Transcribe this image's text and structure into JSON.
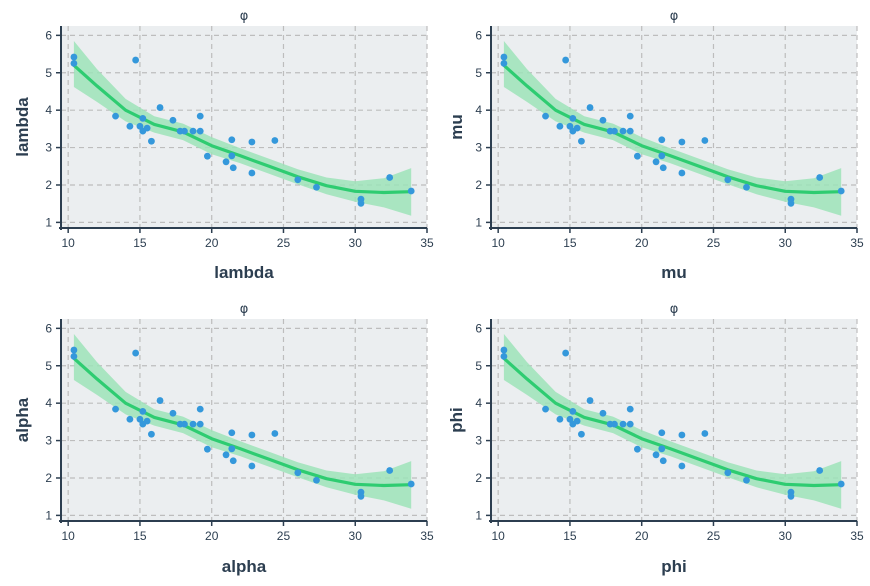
{
  "colors": {
    "panel_bg": "#ebeef0",
    "grid": "#bdbdbd",
    "axis": "#2c3e50",
    "point": "#3498db",
    "smooth_line": "#2ecc71",
    "band": "#9ee3b8"
  },
  "chart_data": [
    {
      "type": "scatter",
      "title": "φ",
      "xlabel": "lambda",
      "ylabel": "lambda",
      "xlim": [
        9.5,
        35
      ],
      "ylim": [
        0.85,
        6.25
      ],
      "xticks": [
        10,
        15,
        20,
        25,
        30,
        35
      ],
      "yticks": [
        1,
        2,
        3,
        4,
        5,
        6
      ],
      "grid": true,
      "points": [
        [
          10.4,
          5.42
        ],
        [
          10.4,
          5.25
        ],
        [
          13.3,
          3.84
        ],
        [
          14.3,
          3.57
        ],
        [
          14.7,
          5.34
        ],
        [
          15.0,
          3.57
        ],
        [
          15.2,
          3.78
        ],
        [
          15.2,
          3.44
        ],
        [
          15.5,
          3.52
        ],
        [
          15.8,
          3.17
        ],
        [
          16.4,
          4.07
        ],
        [
          17.3,
          3.73
        ],
        [
          17.8,
          3.44
        ],
        [
          18.1,
          3.44
        ],
        [
          18.7,
          3.44
        ],
        [
          19.2,
          3.84
        ],
        [
          19.2,
          3.44
        ],
        [
          19.7,
          2.77
        ],
        [
          21.0,
          2.62
        ],
        [
          21.4,
          2.78
        ],
        [
          21.4,
          3.21
        ],
        [
          21.5,
          2.46
        ],
        [
          22.8,
          2.32
        ],
        [
          22.8,
          3.15
        ],
        [
          24.4,
          3.19
        ],
        [
          26.0,
          2.14
        ],
        [
          27.3,
          1.94
        ],
        [
          30.4,
          1.62
        ],
        [
          30.4,
          1.51
        ],
        [
          32.4,
          2.2
        ],
        [
          33.9,
          1.84
        ]
      ],
      "smooth": {
        "x": [
          10.4,
          12.0,
          14.0,
          16.0,
          18.0,
          20.0,
          22.0,
          24.0,
          26.0,
          28.0,
          30.0,
          32.0,
          33.9
        ],
        "y": [
          5.2,
          4.65,
          4.0,
          3.62,
          3.42,
          3.05,
          2.78,
          2.5,
          2.22,
          1.98,
          1.83,
          1.8,
          1.82
        ]
      },
      "band": {
        "x": [
          10.4,
          12.0,
          14.0,
          16.0,
          18.0,
          20.0,
          22.0,
          24.0,
          26.0,
          28.0,
          30.0,
          32.0,
          33.9
        ],
        "lower": [
          4.62,
          4.22,
          3.7,
          3.4,
          3.2,
          2.82,
          2.58,
          2.3,
          2.02,
          1.75,
          1.55,
          1.4,
          1.18
        ],
        "upper": [
          5.85,
          5.1,
          4.3,
          3.84,
          3.64,
          3.28,
          2.98,
          2.7,
          2.42,
          2.2,
          2.1,
          2.18,
          2.45
        ]
      }
    },
    {
      "type": "scatter",
      "title": "φ",
      "xlabel": "mu",
      "ylabel": "mu",
      "xlim": [
        9.5,
        35
      ],
      "ylim": [
        0.85,
        6.25
      ],
      "xticks": [
        10,
        15,
        20,
        25,
        30,
        35
      ],
      "yticks": [
        1,
        2,
        3,
        4,
        5,
        6
      ],
      "grid": true,
      "points": [
        [
          10.4,
          5.42
        ],
        [
          10.4,
          5.25
        ],
        [
          13.3,
          3.84
        ],
        [
          14.3,
          3.57
        ],
        [
          14.7,
          5.34
        ],
        [
          15.0,
          3.57
        ],
        [
          15.2,
          3.78
        ],
        [
          15.2,
          3.44
        ],
        [
          15.5,
          3.52
        ],
        [
          15.8,
          3.17
        ],
        [
          16.4,
          4.07
        ],
        [
          17.3,
          3.73
        ],
        [
          17.8,
          3.44
        ],
        [
          18.1,
          3.44
        ],
        [
          18.7,
          3.44
        ],
        [
          19.2,
          3.84
        ],
        [
          19.2,
          3.44
        ],
        [
          19.7,
          2.77
        ],
        [
          21.0,
          2.62
        ],
        [
          21.4,
          2.78
        ],
        [
          21.4,
          3.21
        ],
        [
          21.5,
          2.46
        ],
        [
          22.8,
          2.32
        ],
        [
          22.8,
          3.15
        ],
        [
          24.4,
          3.19
        ],
        [
          26.0,
          2.14
        ],
        [
          27.3,
          1.94
        ],
        [
          30.4,
          1.62
        ],
        [
          30.4,
          1.51
        ],
        [
          32.4,
          2.2
        ],
        [
          33.9,
          1.84
        ]
      ],
      "smooth": {
        "x": [
          10.4,
          12.0,
          14.0,
          16.0,
          18.0,
          20.0,
          22.0,
          24.0,
          26.0,
          28.0,
          30.0,
          32.0,
          33.9
        ],
        "y": [
          5.2,
          4.65,
          4.0,
          3.62,
          3.42,
          3.05,
          2.78,
          2.5,
          2.22,
          1.98,
          1.83,
          1.8,
          1.82
        ]
      },
      "band": {
        "x": [
          10.4,
          12.0,
          14.0,
          16.0,
          18.0,
          20.0,
          22.0,
          24.0,
          26.0,
          28.0,
          30.0,
          32.0,
          33.9
        ],
        "lower": [
          4.62,
          4.22,
          3.7,
          3.4,
          3.2,
          2.82,
          2.58,
          2.3,
          2.02,
          1.75,
          1.55,
          1.4,
          1.18
        ],
        "upper": [
          5.85,
          5.1,
          4.3,
          3.84,
          3.64,
          3.28,
          2.98,
          2.7,
          2.42,
          2.2,
          2.1,
          2.18,
          2.45
        ]
      }
    },
    {
      "type": "scatter",
      "title": "φ",
      "xlabel": "alpha",
      "ylabel": "alpha",
      "xlim": [
        9.5,
        35
      ],
      "ylim": [
        0.85,
        6.25
      ],
      "xticks": [
        10,
        15,
        20,
        25,
        30,
        35
      ],
      "yticks": [
        1,
        2,
        3,
        4,
        5,
        6
      ],
      "grid": true,
      "points": [
        [
          10.4,
          5.42
        ],
        [
          10.4,
          5.25
        ],
        [
          13.3,
          3.84
        ],
        [
          14.3,
          3.57
        ],
        [
          14.7,
          5.34
        ],
        [
          15.0,
          3.57
        ],
        [
          15.2,
          3.78
        ],
        [
          15.2,
          3.44
        ],
        [
          15.5,
          3.52
        ],
        [
          15.8,
          3.17
        ],
        [
          16.4,
          4.07
        ],
        [
          17.3,
          3.73
        ],
        [
          17.8,
          3.44
        ],
        [
          18.1,
          3.44
        ],
        [
          18.7,
          3.44
        ],
        [
          19.2,
          3.84
        ],
        [
          19.2,
          3.44
        ],
        [
          19.7,
          2.77
        ],
        [
          21.0,
          2.62
        ],
        [
          21.4,
          2.78
        ],
        [
          21.4,
          3.21
        ],
        [
          21.5,
          2.46
        ],
        [
          22.8,
          2.32
        ],
        [
          22.8,
          3.15
        ],
        [
          24.4,
          3.19
        ],
        [
          26.0,
          2.14
        ],
        [
          27.3,
          1.94
        ],
        [
          30.4,
          1.62
        ],
        [
          30.4,
          1.51
        ],
        [
          32.4,
          2.2
        ],
        [
          33.9,
          1.84
        ]
      ],
      "smooth": {
        "x": [
          10.4,
          12.0,
          14.0,
          16.0,
          18.0,
          20.0,
          22.0,
          24.0,
          26.0,
          28.0,
          30.0,
          32.0,
          33.9
        ],
        "y": [
          5.2,
          4.65,
          4.0,
          3.62,
          3.42,
          3.05,
          2.78,
          2.5,
          2.22,
          1.98,
          1.83,
          1.8,
          1.82
        ]
      },
      "band": {
        "x": [
          10.4,
          12.0,
          14.0,
          16.0,
          18.0,
          20.0,
          22.0,
          24.0,
          26.0,
          28.0,
          30.0,
          32.0,
          33.9
        ],
        "lower": [
          4.62,
          4.22,
          3.7,
          3.4,
          3.2,
          2.82,
          2.58,
          2.3,
          2.02,
          1.75,
          1.55,
          1.4,
          1.18
        ],
        "upper": [
          5.85,
          5.1,
          4.3,
          3.84,
          3.64,
          3.28,
          2.98,
          2.7,
          2.42,
          2.2,
          2.1,
          2.18,
          2.45
        ]
      }
    },
    {
      "type": "scatter",
      "title": "φ",
      "xlabel": "phi",
      "ylabel": "phi",
      "xlim": [
        9.5,
        35
      ],
      "ylim": [
        0.85,
        6.25
      ],
      "xticks": [
        10,
        15,
        20,
        25,
        30,
        35
      ],
      "yticks": [
        1,
        2,
        3,
        4,
        5,
        6
      ],
      "grid": true,
      "points": [
        [
          10.4,
          5.42
        ],
        [
          10.4,
          5.25
        ],
        [
          13.3,
          3.84
        ],
        [
          14.3,
          3.57
        ],
        [
          14.7,
          5.34
        ],
        [
          15.0,
          3.57
        ],
        [
          15.2,
          3.78
        ],
        [
          15.2,
          3.44
        ],
        [
          15.5,
          3.52
        ],
        [
          15.8,
          3.17
        ],
        [
          16.4,
          4.07
        ],
        [
          17.3,
          3.73
        ],
        [
          17.8,
          3.44
        ],
        [
          18.1,
          3.44
        ],
        [
          18.7,
          3.44
        ],
        [
          19.2,
          3.84
        ],
        [
          19.2,
          3.44
        ],
        [
          19.7,
          2.77
        ],
        [
          21.0,
          2.62
        ],
        [
          21.4,
          2.78
        ],
        [
          21.4,
          3.21
        ],
        [
          21.5,
          2.46
        ],
        [
          22.8,
          2.32
        ],
        [
          22.8,
          3.15
        ],
        [
          24.4,
          3.19
        ],
        [
          26.0,
          2.14
        ],
        [
          27.3,
          1.94
        ],
        [
          30.4,
          1.62
        ],
        [
          30.4,
          1.51
        ],
        [
          32.4,
          2.2
        ],
        [
          33.9,
          1.84
        ]
      ],
      "smooth": {
        "x": [
          10.4,
          12.0,
          14.0,
          16.0,
          18.0,
          20.0,
          22.0,
          24.0,
          26.0,
          28.0,
          30.0,
          32.0,
          33.9
        ],
        "y": [
          5.2,
          4.65,
          4.0,
          3.62,
          3.42,
          3.05,
          2.78,
          2.5,
          2.22,
          1.98,
          1.83,
          1.8,
          1.82
        ]
      },
      "band": {
        "x": [
          10.4,
          12.0,
          14.0,
          16.0,
          18.0,
          20.0,
          22.0,
          24.0,
          26.0,
          28.0,
          30.0,
          32.0,
          33.9
        ],
        "lower": [
          4.62,
          4.22,
          3.7,
          3.4,
          3.2,
          2.82,
          2.58,
          2.3,
          2.02,
          1.75,
          1.55,
          1.4,
          1.18
        ],
        "upper": [
          5.85,
          5.1,
          4.3,
          3.84,
          3.64,
          3.28,
          2.98,
          2.7,
          2.42,
          2.2,
          2.1,
          2.18,
          2.45
        ]
      }
    }
  ]
}
